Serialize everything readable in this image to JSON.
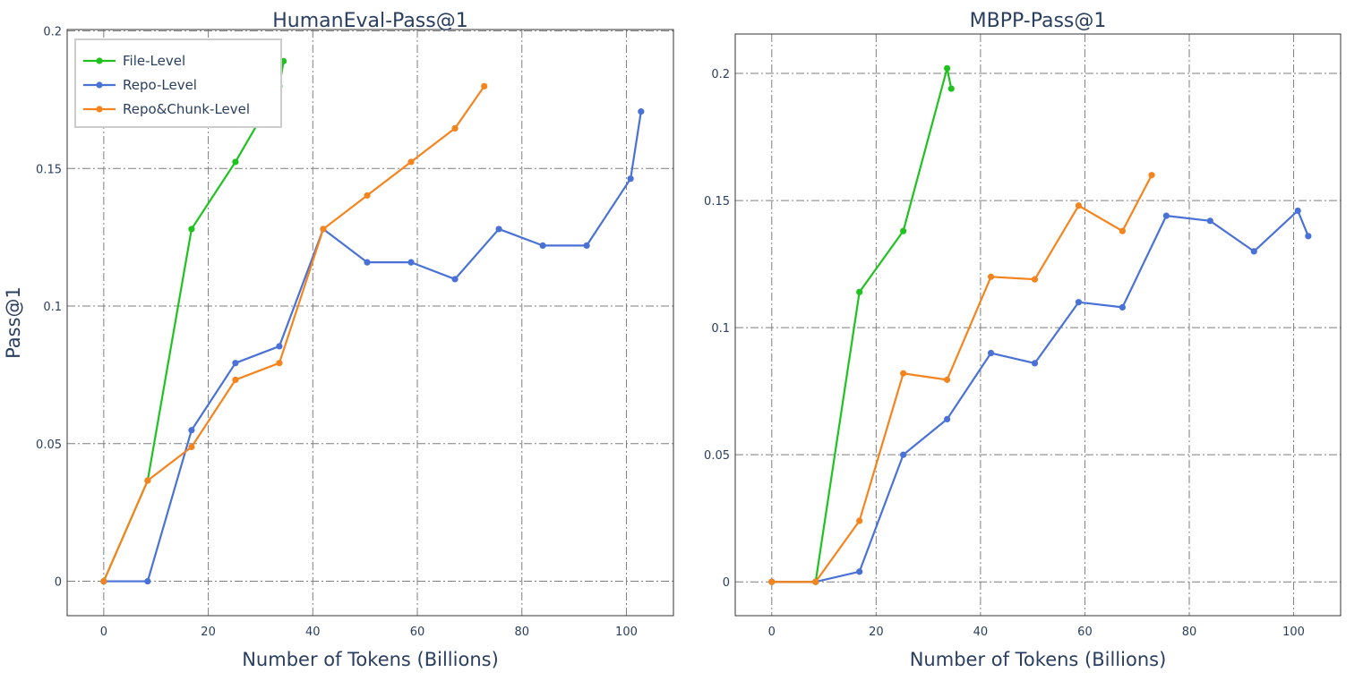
{
  "chart_data": [
    {
      "type": "line",
      "title": "HumanEval-Pass@1",
      "xlabel": "Number of Tokens (Billions)",
      "ylabel": "Pass@1",
      "xlim": [
        -7,
        109
      ],
      "ylim": [
        -0.0125,
        0.2005
      ],
      "xticks": [
        0,
        20,
        40,
        60,
        80,
        100
      ],
      "yticks": [
        0,
        0.05,
        0.1,
        0.15,
        0.2
      ],
      "ytick_labels": [
        "0",
        "0.05",
        "0.1",
        "0.15",
        "0.2"
      ],
      "grid": true,
      "legend": {
        "placement": "top-left",
        "entries": [
          "File-Level",
          "Repo-Level",
          "Repo&Chunk-Level"
        ]
      },
      "series": [
        {
          "name": "File-Level",
          "color": "#1fc21f",
          "x": [
            0,
            8.4,
            16.8,
            25.2,
            33.6,
            34.4
          ],
          "y": [
            0,
            0.0366,
            0.128,
            0.1524,
            0.1799,
            0.189
          ]
        },
        {
          "name": "Repo-Level",
          "color": "#4a72d6",
          "x": [
            0,
            8.4,
            16.8,
            25.2,
            33.6,
            42.0,
            50.4,
            58.8,
            67.2,
            75.6,
            84.0,
            92.4,
            100.8,
            102.8
          ],
          "y": [
            0,
            0,
            0.0549,
            0.0793,
            0.0854,
            0.128,
            0.1159,
            0.1159,
            0.1098,
            0.128,
            0.122,
            0.122,
            0.1463,
            0.1707
          ]
        },
        {
          "name": "Repo&Chunk-Level",
          "color": "#f5841f",
          "x": [
            0,
            8.4,
            16.8,
            25.2,
            33.6,
            42.0,
            50.4,
            58.8,
            67.2,
            72.8
          ],
          "y": [
            0,
            0.0366,
            0.0488,
            0.0732,
            0.0793,
            0.128,
            0.1402,
            0.1524,
            0.1646,
            0.1799
          ]
        }
      ]
    },
    {
      "type": "line",
      "title": "MBPP-Pass@1",
      "xlabel": "Number of Tokens (Billions)",
      "ylabel": "",
      "xlim": [
        -7,
        109
      ],
      "ylim": [
        -0.0133,
        0.2155
      ],
      "xticks": [
        0,
        20,
        40,
        60,
        80,
        100
      ],
      "yticks": [
        0,
        0.05,
        0.1,
        0.15,
        0.2
      ],
      "ytick_labels": [
        "0",
        "0.05",
        "0.1",
        "0.15",
        "0.2"
      ],
      "grid": true,
      "series": [
        {
          "name": "File-Level",
          "color": "#1fc21f",
          "x": [
            0,
            8.4,
            16.8,
            25.2,
            33.6,
            34.4
          ],
          "y": [
            0,
            0,
            0.114,
            0.138,
            0.202,
            0.194
          ]
        },
        {
          "name": "Repo-Level",
          "color": "#4a72d6",
          "x": [
            0,
            8.4,
            16.8,
            25.2,
            33.6,
            42.0,
            50.4,
            58.8,
            67.2,
            75.6,
            84.0,
            92.4,
            100.8,
            102.8
          ],
          "y": [
            0,
            0,
            0.004,
            0.05,
            0.064,
            0.09,
            0.086,
            0.11,
            0.108,
            0.144,
            0.142,
            0.13,
            0.146,
            0.136
          ]
        },
        {
          "name": "Repo&Chunk-Level",
          "color": "#f5841f",
          "x": [
            0,
            8.4,
            16.8,
            25.2,
            33.6,
            42.0,
            50.4,
            58.8,
            67.2,
            72.8
          ],
          "y": [
            0,
            0,
            0.024,
            0.082,
            0.0795,
            0.12,
            0.119,
            0.148,
            0.138,
            0.16
          ]
        }
      ]
    }
  ]
}
